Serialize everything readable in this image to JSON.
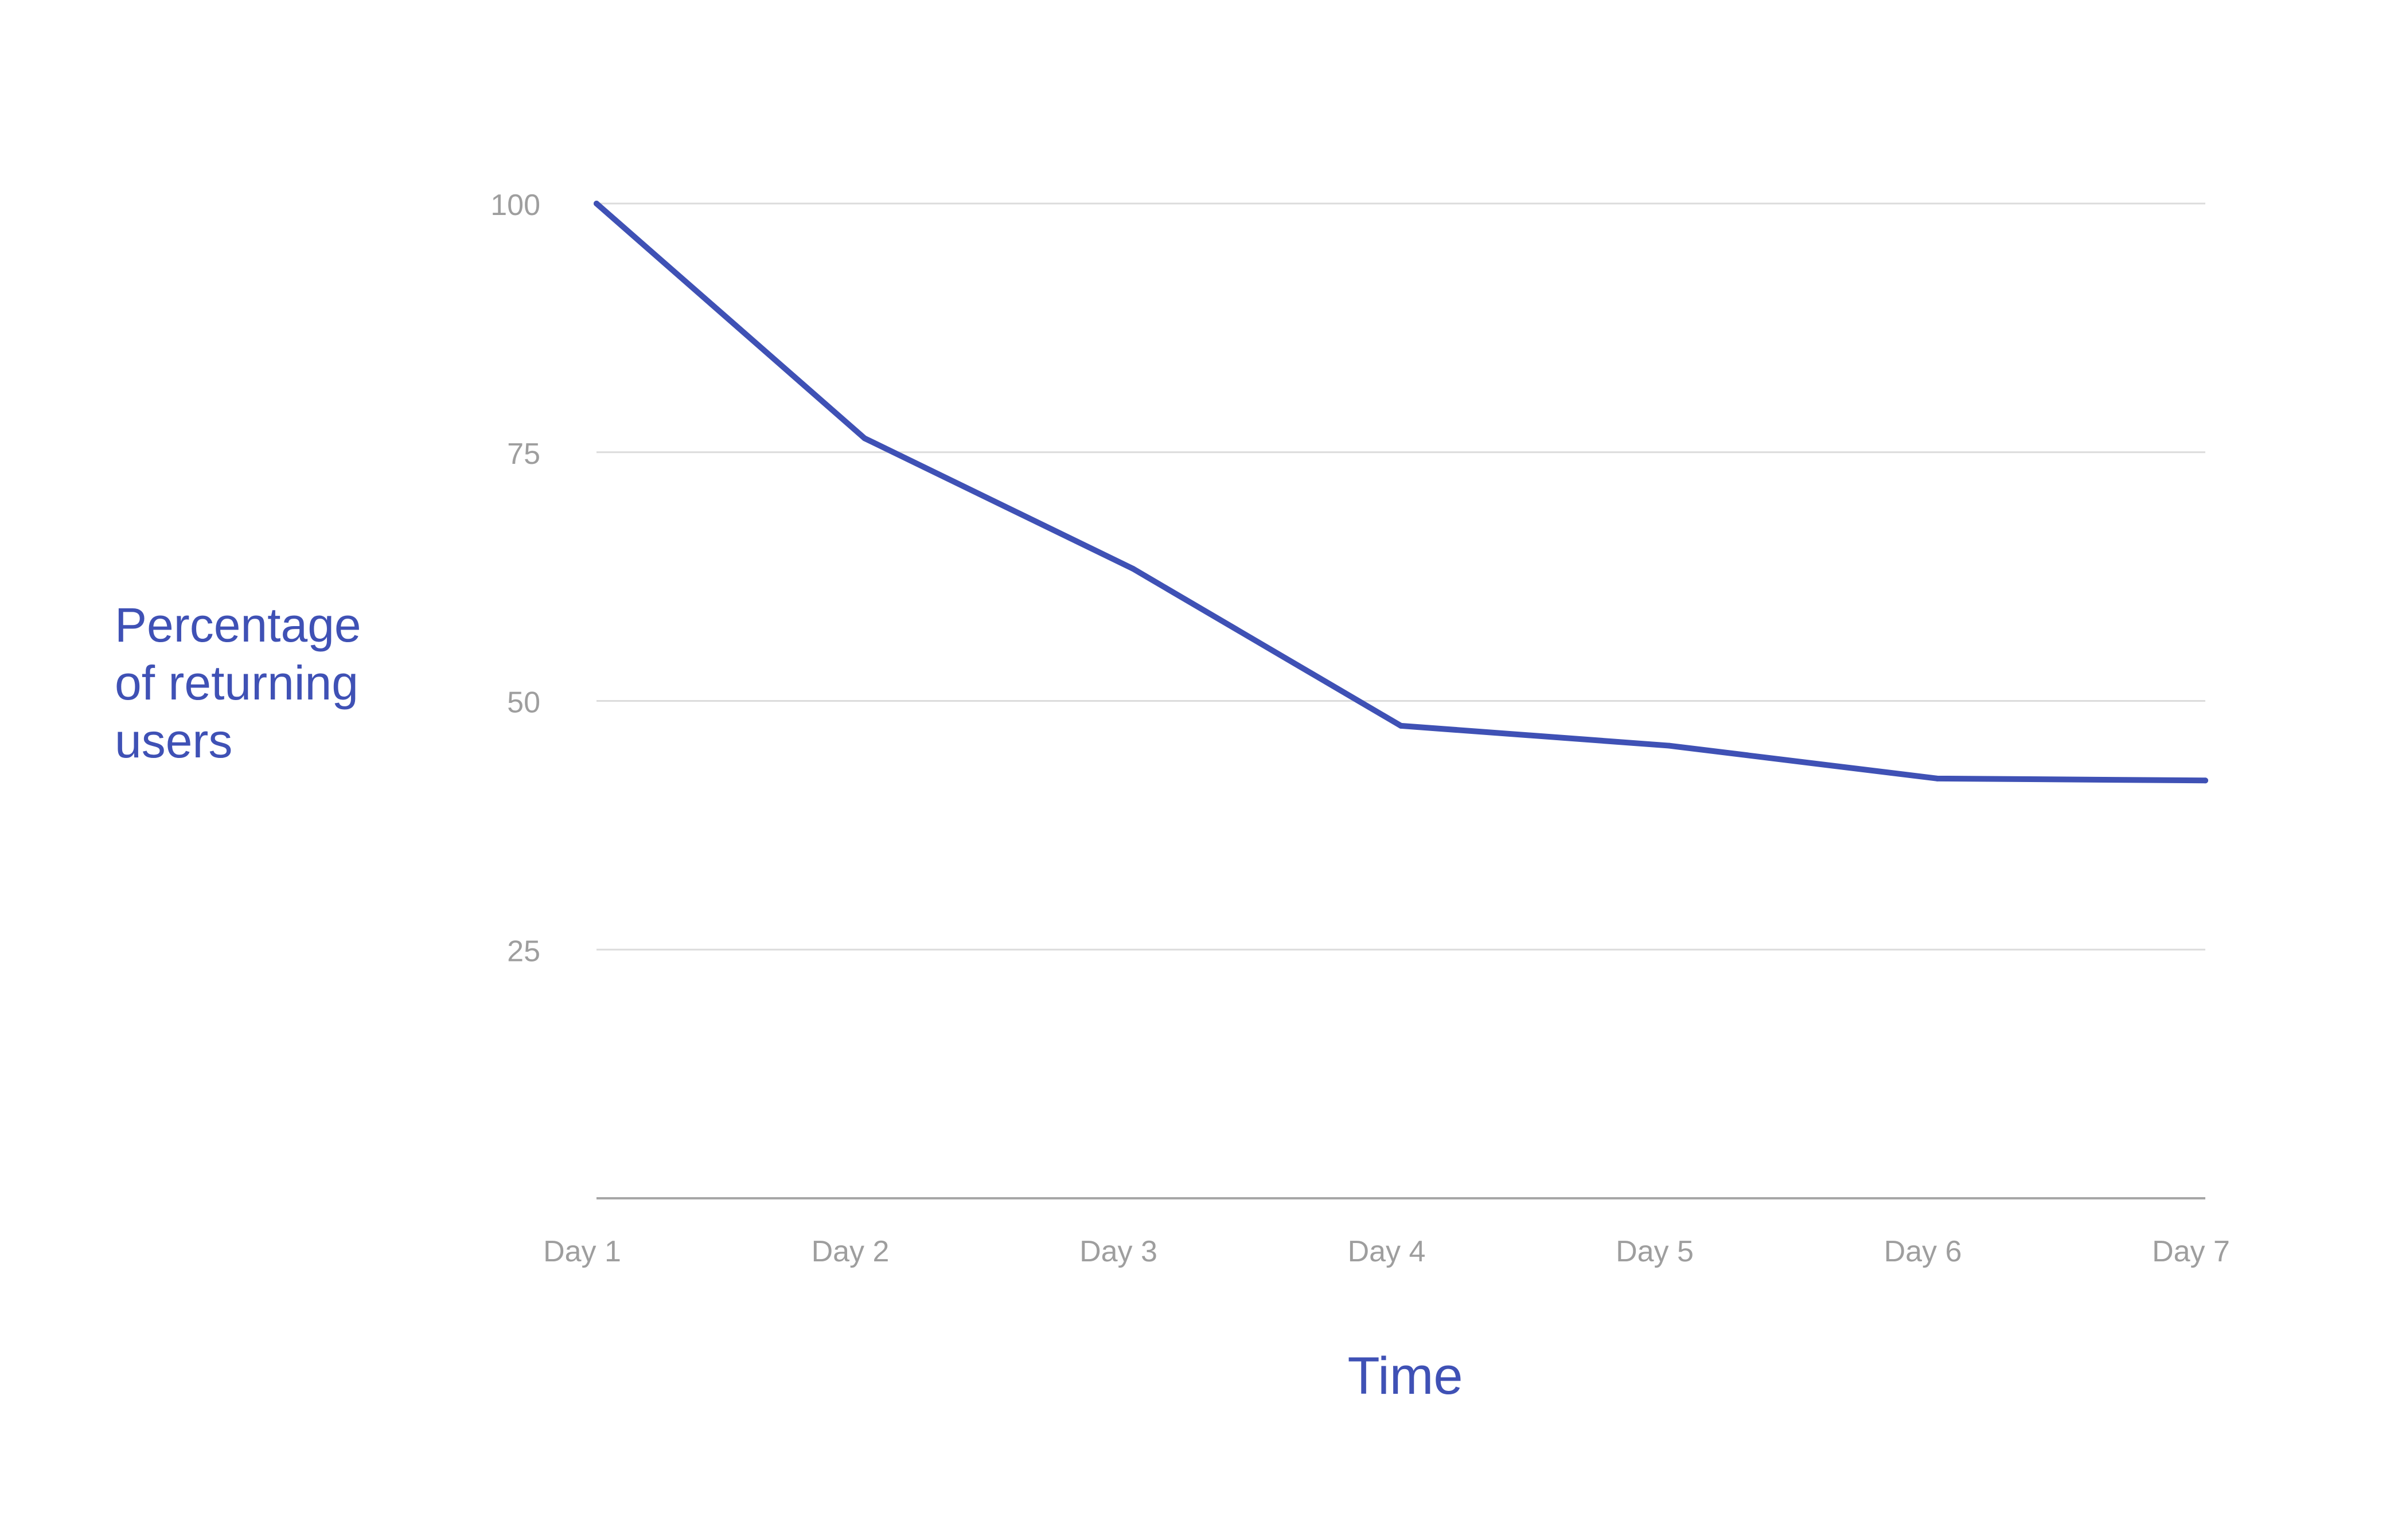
{
  "chart_data": {
    "type": "line",
    "title": "",
    "xlabel": "Time",
    "ylabel_lines": [
      "Percentage",
      "of returning",
      "users"
    ],
    "categories": [
      "Day 1",
      "Day 2",
      "Day 3",
      "Day 4",
      "Day 5",
      "Day 6",
      "Day 7"
    ],
    "series": [
      {
        "values": [
          100,
          76.4,
          63.3,
          47.5,
          45.5,
          42.2,
          42.0
        ]
      }
    ],
    "yticks": [
      25,
      50,
      75,
      100
    ],
    "ytick_labels": [
      "25",
      "50",
      "75",
      "100"
    ],
    "ylim": [
      0,
      100
    ],
    "grid": true,
    "colors": {
      "line": "#3f51b5",
      "grid": "#dcdcdc",
      "axis": "#a6a6a6",
      "tick_text": "#9e9e9e",
      "label_text": "#3f51b5"
    }
  }
}
